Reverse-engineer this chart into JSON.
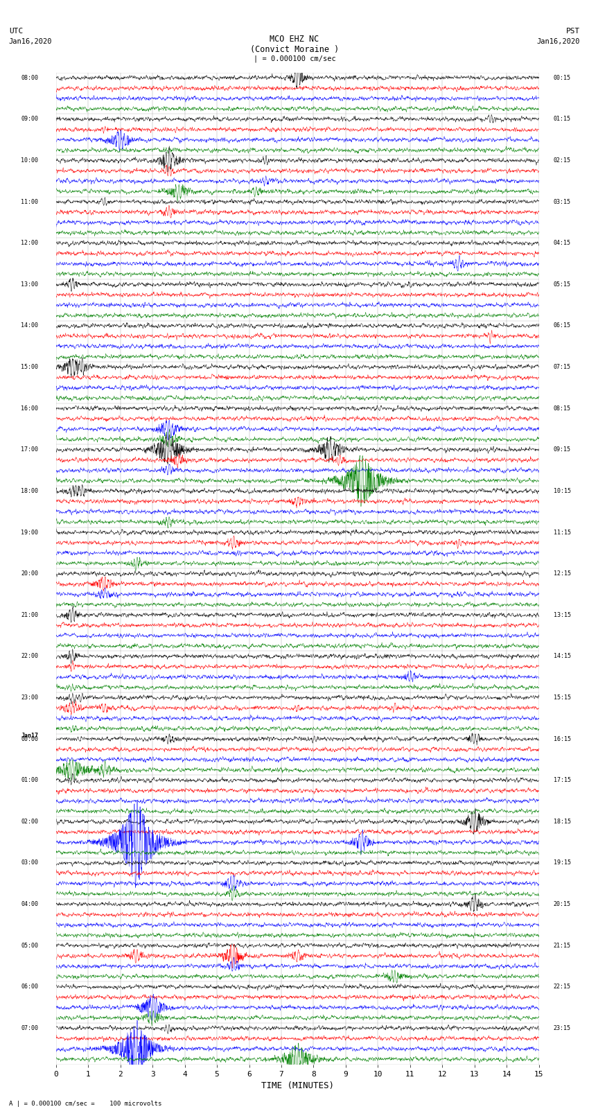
{
  "title_line1": "MCO EHZ NC",
  "title_line2": "(Convict Moraine )",
  "scale_label": "| = 0.000100 cm/sec",
  "bottom_label": "A | = 0.000100 cm/sec =    100 microvolts",
  "xlabel": "TIME (MINUTES)",
  "colors": [
    "black",
    "red",
    "blue",
    "green"
  ],
  "fig_width": 8.5,
  "fig_height": 16.13,
  "dpi": 100,
  "bg_color": "white",
  "trace_linewidth": 0.35,
  "grid_color": "#777777",
  "utc_labels": [
    "08:00",
    "09:00",
    "10:00",
    "11:00",
    "12:00",
    "13:00",
    "14:00",
    "15:00",
    "16:00",
    "17:00",
    "18:00",
    "19:00",
    "20:00",
    "21:00",
    "22:00",
    "23:00",
    "Jan17\n00:00",
    "01:00",
    "02:00",
    "03:00",
    "04:00",
    "05:00",
    "06:00",
    "07:00"
  ],
  "pst_labels": [
    "00:15",
    "01:15",
    "02:15",
    "03:15",
    "04:15",
    "05:15",
    "06:15",
    "07:15",
    "08:15",
    "09:15",
    "10:15",
    "11:15",
    "12:15",
    "13:15",
    "14:15",
    "15:15",
    "16:15",
    "17:15",
    "18:15",
    "19:15",
    "20:15",
    "21:15",
    "22:15",
    "23:15"
  ],
  "num_groups": 24,
  "traces_per_group": 4,
  "n_points": 2000,
  "base_noise": 0.25
}
